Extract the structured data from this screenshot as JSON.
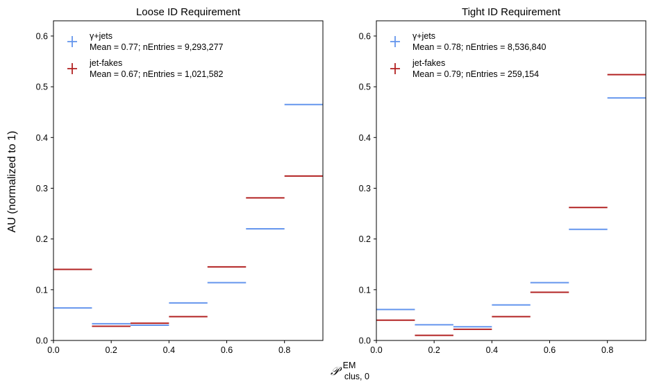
{
  "figure": {
    "ylabel": "AU (normalized to 1)",
    "xlabel_main": "𝒫",
    "xlabel_sup": "EM",
    "xlabel_sub": "clus, 0"
  },
  "chart_data": [
    {
      "type": "step-histogram",
      "title": "Loose ID Requirement",
      "xlim": [
        0,
        0.933
      ],
      "ylim": [
        0,
        0.63
      ],
      "xticks": [
        "0.0",
        "0.2",
        "0.4",
        "0.6",
        "0.8"
      ],
      "xtick_values": [
        0,
        0.2,
        0.4,
        0.6,
        0.8
      ],
      "yticks": [
        "0.0",
        "0.1",
        "0.2",
        "0.3",
        "0.4",
        "0.5",
        "0.6"
      ],
      "ytick_values": [
        0,
        0.1,
        0.2,
        0.3,
        0.4,
        0.5,
        0.6
      ],
      "bin_edges": [
        0,
        0.1333,
        0.2667,
        0.4,
        0.5333,
        0.6667,
        0.8,
        0.9333
      ],
      "legend_position": "top-left",
      "series": [
        {
          "name": "γ+jets",
          "stats": "Mean = 0.77; nEntries = 9,293,277",
          "color": "#6495ed",
          "values": [
            0.064,
            0.033,
            0.03,
            0.074,
            0.114,
            0.22,
            0.465
          ]
        },
        {
          "name": "jet-fakes",
          "stats": "Mean = 0.67; nEntries =  1,021,582",
          "color": "#b22222",
          "values": [
            0.14,
            0.028,
            0.034,
            0.047,
            0.145,
            0.281,
            0.324
          ]
        }
      ]
    },
    {
      "type": "step-histogram",
      "title": "Tight ID Requirement",
      "xlim": [
        0,
        0.933
      ],
      "ylim": [
        0,
        0.63
      ],
      "xticks": [
        "0.0",
        "0.2",
        "0.4",
        "0.6",
        "0.8"
      ],
      "xtick_values": [
        0,
        0.2,
        0.4,
        0.6,
        0.8
      ],
      "yticks": [
        "0.0",
        "0.1",
        "0.2",
        "0.3",
        "0.4",
        "0.5",
        "0.6"
      ],
      "ytick_values": [
        0,
        0.1,
        0.2,
        0.3,
        0.4,
        0.5,
        0.6
      ],
      "bin_edges": [
        0,
        0.1333,
        0.2667,
        0.4,
        0.5333,
        0.6667,
        0.8,
        0.9333
      ],
      "legend_position": "top-left",
      "series": [
        {
          "name": "γ+jets",
          "stats": "Mean = 0.78; nEntries = 8,536,840",
          "color": "#6495ed",
          "values": [
            0.061,
            0.031,
            0.027,
            0.07,
            0.114,
            0.219,
            0.478
          ]
        },
        {
          "name": "jet-fakes",
          "stats": "Mean = 0.79; nEntries =  259,154",
          "color": "#b22222",
          "values": [
            0.04,
            0.01,
            0.022,
            0.047,
            0.095,
            0.262,
            0.524
          ]
        }
      ]
    }
  ]
}
